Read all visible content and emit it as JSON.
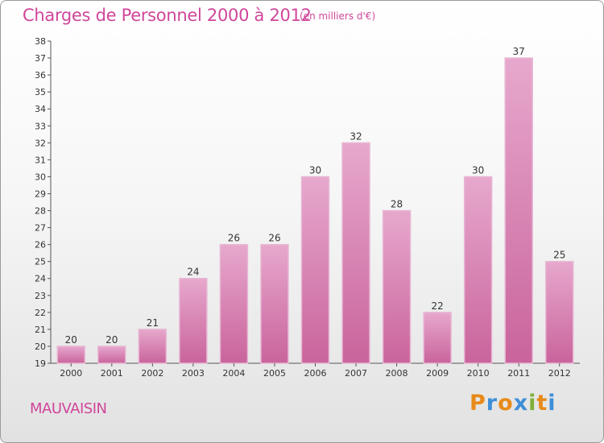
{
  "chart_data": {
    "type": "bar",
    "title": "Charges de Personnel 2000 à 2012",
    "subtitle": "(en milliers d'€)",
    "categories": [
      "2000",
      "2001",
      "2002",
      "2003",
      "2004",
      "2005",
      "2006",
      "2007",
      "2008",
      "2009",
      "2010",
      "2011",
      "2012"
    ],
    "values": [
      20,
      20,
      21,
      24,
      26,
      26,
      30,
      32,
      28,
      22,
      30,
      37,
      25
    ],
    "ylim": [
      19,
      38
    ],
    "yticks": [
      19,
      20,
      21,
      22,
      23,
      24,
      25,
      26,
      27,
      28,
      29,
      30,
      31,
      32,
      33,
      34,
      35,
      36,
      37,
      38
    ],
    "grid": false,
    "bar_color": "#c9649c",
    "bar_color_light": "#e7a8cd"
  },
  "footer": {
    "commune": "MAUVAISIN",
    "logo_letters": [
      "P",
      "r",
      "o",
      "x",
      "i",
      "t",
      "i"
    ],
    "logo_colors": [
      "#e88a1a",
      "#3f8ed8",
      "#e88a1a",
      "#3f8ed8",
      "#7fb03a",
      "#e88a1a",
      "#3f8ed8"
    ]
  }
}
